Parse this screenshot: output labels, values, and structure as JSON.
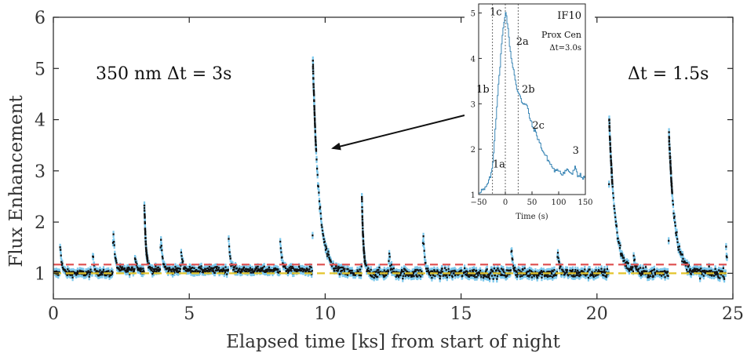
{
  "chart_data": [
    {
      "type": "scatter",
      "title": "",
      "xlabel": "Elapsed time [ks] from start of night",
      "ylabel": "Flux Enhancement",
      "xlim": [
        0,
        25
      ],
      "ylim": [
        0.5,
        6
      ],
      "x_ticks": [
        "0",
        "5",
        "10",
        "15",
        "20",
        "25"
      ],
      "y_ticks": [
        "1",
        "2",
        "3",
        "4",
        "5",
        "6"
      ],
      "grid": false,
      "colors": {
        "points": "#111111",
        "error_bars": "#7cc8ec",
        "threshold_line": "#e05555",
        "baseline_line": "#e3c42a"
      },
      "annotations": [
        {
          "text": "350 nm Δt = 3s"
        },
        {
          "text": "Δt = 1.5s"
        }
      ],
      "reference_lines": [
        {
          "name": "threshold",
          "y": 1.17,
          "style": "dashed",
          "color": "#e05555"
        },
        {
          "name": "baseline",
          "y": 1.0,
          "style": "dashed",
          "color": "#e3c42a"
        }
      ],
      "segments": [
        {
          "x_range": [
            0.0,
            9.55
          ],
          "cadence_s": 3.0
        },
        {
          "x_range": [
            9.55,
            24.8
          ],
          "cadence_s": 1.5
        }
      ],
      "flares": [
        {
          "x": 0.25,
          "peak": 1.6
        },
        {
          "x": 1.45,
          "peak": 1.35
        },
        {
          "x": 2.2,
          "peak": 1.9
        },
        {
          "x": 3.0,
          "peak": 1.3
        },
        {
          "x": 3.35,
          "peak": 2.25
        },
        {
          "x": 3.95,
          "peak": 1.75
        },
        {
          "x": 4.7,
          "peak": 1.4
        },
        {
          "x": 6.45,
          "peak": 1.65
        },
        {
          "x": 8.35,
          "peak": 1.6
        },
        {
          "x": 9.55,
          "peak": 5.1
        },
        {
          "x": 11.35,
          "peak": 2.5
        },
        {
          "x": 12.35,
          "peak": 1.4
        },
        {
          "x": 13.6,
          "peak": 1.85
        },
        {
          "x": 16.85,
          "peak": 1.55
        },
        {
          "x": 18.55,
          "peak": 1.45
        },
        {
          "x": 20.45,
          "peak": 4.0
        },
        {
          "x": 21.35,
          "peak": 1.35
        },
        {
          "x": 22.65,
          "peak": 3.7
        },
        {
          "x": 24.75,
          "peak": 1.55
        }
      ]
    },
    {
      "type": "line",
      "title": "IF10",
      "subtitle": "Prox Cen",
      "note": "Δt=3.0s",
      "xlabel": "Time (s)",
      "ylabel": "",
      "xlim": [
        -50,
        150
      ],
      "ylim": [
        1,
        5.2
      ],
      "x_ticks": [
        "−50",
        "0",
        "50",
        "100",
        "150"
      ],
      "y_ticks": [
        "1",
        "2",
        "3",
        "4",
        "5"
      ],
      "colors": {
        "line": "#3a86b5"
      },
      "phase_boundaries": [
        -24,
        0,
        24
      ],
      "phase_labels": [
        {
          "label": "1a",
          "x": -12,
          "y": 1.6
        },
        {
          "label": "1b",
          "x": -42,
          "y": 3.25
        },
        {
          "label": "1c",
          "x": -18,
          "y": 4.95
        },
        {
          "label": "2a",
          "x": 32,
          "y": 4.3
        },
        {
          "label": "2b",
          "x": 43,
          "y": 3.25
        },
        {
          "label": "2c",
          "x": 62,
          "y": 2.45
        },
        {
          "label": "3",
          "x": 132,
          "y": 1.9
        }
      ],
      "series": [
        {
          "x": [
            -50,
            -45,
            -40,
            -35,
            -30,
            -27,
            -24,
            -21,
            -18,
            -15,
            -12,
            -9,
            -6,
            -3,
            0,
            3,
            6,
            9,
            12,
            15,
            18,
            21,
            24,
            27,
            30,
            35,
            40,
            45,
            50,
            55,
            60,
            65,
            70,
            75,
            80,
            85,
            90,
            95,
            100,
            105,
            110,
            115,
            120,
            125,
            130,
            135,
            140,
            145,
            150
          ],
          "y": [
            1.05,
            1.1,
            1.1,
            1.2,
            1.35,
            1.45,
            1.7,
            2.2,
            2.7,
            3.2,
            3.6,
            4.1,
            4.5,
            4.8,
            5.05,
            4.8,
            4.45,
            4.15,
            3.9,
            3.75,
            3.5,
            3.3,
            3.25,
            3.2,
            3.05,
            3.0,
            2.95,
            2.7,
            2.5,
            2.4,
            2.25,
            2.1,
            1.95,
            1.85,
            1.75,
            1.65,
            1.55,
            1.5,
            1.55,
            1.45,
            1.5,
            1.55,
            1.5,
            1.45,
            1.6,
            1.4,
            1.45,
            1.35,
            1.4
          ]
        }
      ]
    }
  ]
}
